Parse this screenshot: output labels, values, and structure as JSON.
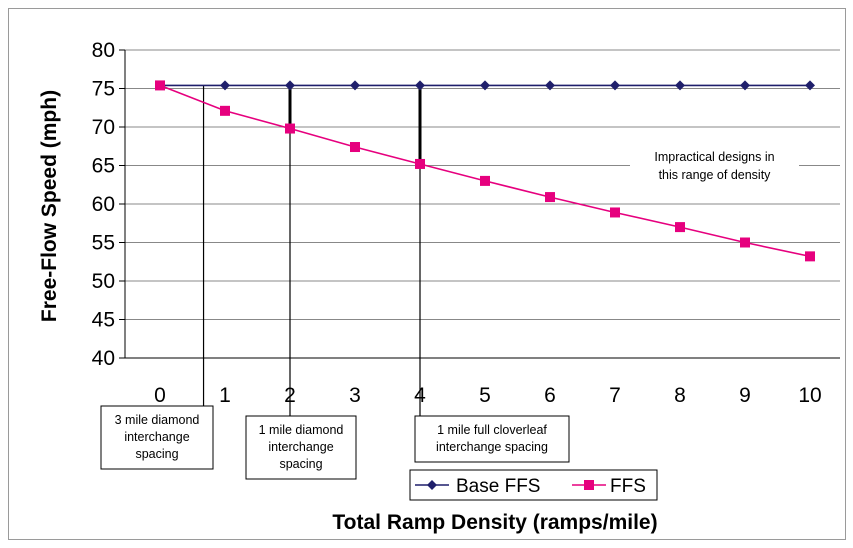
{
  "chart_data": {
    "type": "line",
    "xlabel": "Total Ramp Density (ramps/mile)",
    "ylabel": "Free-Flow Speed (mph)",
    "xlim": [
      0,
      10
    ],
    "ylim": [
      40,
      80
    ],
    "x_ticks": [
      "0",
      "1",
      "2",
      "3",
      "4",
      "5",
      "6",
      "7",
      "8",
      "9",
      "10"
    ],
    "y_ticks": [
      "40",
      "45",
      "50",
      "55",
      "60",
      "65",
      "70",
      "75",
      "80"
    ],
    "grid": "horizontal",
    "legend_position": "bottom",
    "x": [
      0,
      1,
      2,
      3,
      4,
      5,
      6,
      7,
      8,
      9,
      10
    ],
    "series": [
      {
        "name": "Base FFS",
        "color": "#1f1f6b",
        "marker": "diamond",
        "values": [
          75.4,
          75.4,
          75.4,
          75.4,
          75.4,
          75.4,
          75.4,
          75.4,
          75.4,
          75.4,
          75.4
        ]
      },
      {
        "name": "FFS",
        "color": "#e6007e",
        "marker": "square",
        "values": [
          75.4,
          72.1,
          69.8,
          67.4,
          65.2,
          63.0,
          60.9,
          58.9,
          57.0,
          55.0,
          53.2
        ]
      }
    ],
    "reference_lines": [
      {
        "x": 0.67,
        "label_lines": [
          "3 mile diamond",
          "interchange",
          "spacing"
        ]
      },
      {
        "x": 2,
        "label_lines": [
          "1 mile diamond",
          "interchange",
          "spacing"
        ]
      },
      {
        "x": 4,
        "label_lines": [
          "1 mile full cloverleaf",
          "interchange spacing"
        ]
      }
    ],
    "note_lines": [
      "Impractical designs in",
      "this range of density"
    ]
  }
}
